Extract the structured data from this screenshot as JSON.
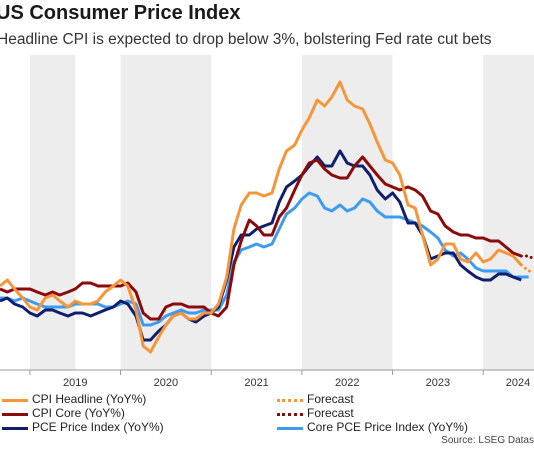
{
  "title": "US Consumer Price Index",
  "subtitle": "Headline CPI is expected to drop below 3%, bolstering Fed rate cut bets",
  "source": "Source: LSEG Datas",
  "chart_data": {
    "type": "line",
    "x_ticks": [
      "2019",
      "2020",
      "2021",
      "2022",
      "2023",
      "2024"
    ],
    "recessions_shaded": true,
    "legend_position": "bottom",
    "x_range": [
      2018.67,
      2024.56
    ],
    "ylim": [
      -0.5,
      10.0
    ],
    "grid": false,
    "series": [
      {
        "name": "CPI Headline (YoY%)",
        "color": "#f5963a",
        "style": "solid",
        "points": [
          [
            2018.67,
            2.3
          ],
          [
            2018.75,
            2.5
          ],
          [
            2018.83,
            2.2
          ],
          [
            2018.92,
            1.9
          ],
          [
            2019.0,
            1.6
          ],
          [
            2019.08,
            1.5
          ],
          [
            2019.17,
            1.9
          ],
          [
            2019.25,
            2.0
          ],
          [
            2019.33,
            1.8
          ],
          [
            2019.42,
            1.6
          ],
          [
            2019.5,
            1.8
          ],
          [
            2019.58,
            1.7
          ],
          [
            2019.67,
            1.7
          ],
          [
            2019.75,
            1.8
          ],
          [
            2019.83,
            2.1
          ],
          [
            2019.92,
            2.3
          ],
          [
            2020.0,
            2.5
          ],
          [
            2020.08,
            2.3
          ],
          [
            2020.17,
            1.5
          ],
          [
            2020.25,
            0.3
          ],
          [
            2020.33,
            0.1
          ],
          [
            2020.42,
            0.6
          ],
          [
            2020.5,
            1.0
          ],
          [
            2020.58,
            1.3
          ],
          [
            2020.67,
            1.4
          ],
          [
            2020.75,
            1.2
          ],
          [
            2020.83,
            1.2
          ],
          [
            2020.92,
            1.4
          ],
          [
            2021.0,
            1.4
          ],
          [
            2021.08,
            1.7
          ],
          [
            2021.17,
            2.6
          ],
          [
            2021.25,
            4.2
          ],
          [
            2021.33,
            5.0
          ],
          [
            2021.42,
            5.4
          ],
          [
            2021.5,
            5.4
          ],
          [
            2021.58,
            5.3
          ],
          [
            2021.67,
            5.4
          ],
          [
            2021.75,
            6.2
          ],
          [
            2021.83,
            6.8
          ],
          [
            2021.92,
            7.0
          ],
          [
            2022.0,
            7.5
          ],
          [
            2022.08,
            7.9
          ],
          [
            2022.17,
            8.5
          ],
          [
            2022.25,
            8.3
          ],
          [
            2022.33,
            8.6
          ],
          [
            2022.42,
            9.1
          ],
          [
            2022.5,
            8.5
          ],
          [
            2022.58,
            8.3
          ],
          [
            2022.67,
            8.2
          ],
          [
            2022.75,
            7.7
          ],
          [
            2022.83,
            7.1
          ],
          [
            2022.92,
            6.5
          ],
          [
            2023.0,
            6.4
          ],
          [
            2023.08,
            6.0
          ],
          [
            2023.17,
            5.0
          ],
          [
            2023.25,
            4.9
          ],
          [
            2023.33,
            4.0
          ],
          [
            2023.42,
            3.0
          ],
          [
            2023.5,
            3.2
          ],
          [
            2023.58,
            3.7
          ],
          [
            2023.67,
            3.7
          ],
          [
            2023.75,
            3.2
          ],
          [
            2023.83,
            3.1
          ],
          [
            2023.92,
            3.4
          ],
          [
            2024.0,
            3.1
          ],
          [
            2024.08,
            3.2
          ],
          [
            2024.17,
            3.5
          ],
          [
            2024.25,
            3.4
          ],
          [
            2024.33,
            3.3
          ],
          [
            2024.42,
            3.0
          ]
        ]
      },
      {
        "name": "CPI Core (YoY%)",
        "color": "#8b0a0a",
        "style": "solid",
        "points": [
          [
            2018.67,
            2.2
          ],
          [
            2018.75,
            2.1
          ],
          [
            2018.83,
            2.2
          ],
          [
            2018.92,
            2.2
          ],
          [
            2019.0,
            2.2
          ],
          [
            2019.08,
            2.1
          ],
          [
            2019.17,
            2.0
          ],
          [
            2019.25,
            2.1
          ],
          [
            2019.33,
            2.0
          ],
          [
            2019.42,
            2.1
          ],
          [
            2019.5,
            2.2
          ],
          [
            2019.58,
            2.4
          ],
          [
            2019.67,
            2.4
          ],
          [
            2019.75,
            2.3
          ],
          [
            2019.83,
            2.3
          ],
          [
            2019.92,
            2.3
          ],
          [
            2020.0,
            2.3
          ],
          [
            2020.08,
            2.4
          ],
          [
            2020.17,
            2.1
          ],
          [
            2020.25,
            1.4
          ],
          [
            2020.33,
            1.2
          ],
          [
            2020.42,
            1.2
          ],
          [
            2020.5,
            1.6
          ],
          [
            2020.58,
            1.7
          ],
          [
            2020.67,
            1.7
          ],
          [
            2020.75,
            1.6
          ],
          [
            2020.83,
            1.6
          ],
          [
            2020.92,
            1.6
          ],
          [
            2021.0,
            1.4
          ],
          [
            2021.08,
            1.3
          ],
          [
            2021.17,
            1.6
          ],
          [
            2021.25,
            3.0
          ],
          [
            2021.33,
            3.8
          ],
          [
            2021.42,
            4.5
          ],
          [
            2021.5,
            4.3
          ],
          [
            2021.58,
            4.0
          ],
          [
            2021.67,
            4.0
          ],
          [
            2021.75,
            4.6
          ],
          [
            2021.83,
            4.9
          ],
          [
            2021.92,
            5.5
          ],
          [
            2022.0,
            6.0
          ],
          [
            2022.08,
            6.4
          ],
          [
            2022.17,
            6.5
          ],
          [
            2022.25,
            6.2
          ],
          [
            2022.33,
            6.0
          ],
          [
            2022.42,
            5.9
          ],
          [
            2022.5,
            5.9
          ],
          [
            2022.58,
            6.3
          ],
          [
            2022.67,
            6.6
          ],
          [
            2022.75,
            6.3
          ],
          [
            2022.83,
            6.0
          ],
          [
            2022.92,
            5.7
          ],
          [
            2023.0,
            5.6
          ],
          [
            2023.08,
            5.5
          ],
          [
            2023.17,
            5.6
          ],
          [
            2023.25,
            5.5
          ],
          [
            2023.33,
            5.3
          ],
          [
            2023.42,
            4.8
          ],
          [
            2023.5,
            4.7
          ],
          [
            2023.58,
            4.3
          ],
          [
            2023.67,
            4.1
          ],
          [
            2023.75,
            4.0
          ],
          [
            2023.83,
            4.0
          ],
          [
            2023.92,
            3.9
          ],
          [
            2024.0,
            3.9
          ],
          [
            2024.08,
            3.8
          ],
          [
            2024.17,
            3.8
          ],
          [
            2024.25,
            3.6
          ],
          [
            2024.33,
            3.4
          ],
          [
            2024.42,
            3.3
          ]
        ]
      },
      {
        "name": "PCE Price Index (YoY%)",
        "color": "#0f1f6e",
        "style": "solid",
        "points": [
          [
            2018.67,
            1.8
          ],
          [
            2018.75,
            1.9
          ],
          [
            2018.83,
            1.7
          ],
          [
            2018.92,
            1.6
          ],
          [
            2019.0,
            1.4
          ],
          [
            2019.08,
            1.3
          ],
          [
            2019.17,
            1.5
          ],
          [
            2019.25,
            1.5
          ],
          [
            2019.33,
            1.4
          ],
          [
            2019.42,
            1.3
          ],
          [
            2019.5,
            1.4
          ],
          [
            2019.58,
            1.4
          ],
          [
            2019.67,
            1.3
          ],
          [
            2019.75,
            1.4
          ],
          [
            2019.83,
            1.5
          ],
          [
            2019.92,
            1.6
          ],
          [
            2020.0,
            1.8
          ],
          [
            2020.08,
            1.7
          ],
          [
            2020.17,
            1.3
          ],
          [
            2020.25,
            0.5
          ],
          [
            2020.33,
            0.5
          ],
          [
            2020.42,
            0.8
          ],
          [
            2020.5,
            1.0
          ],
          [
            2020.58,
            1.3
          ],
          [
            2020.67,
            1.4
          ],
          [
            2020.75,
            1.2
          ],
          [
            2020.83,
            1.1
          ],
          [
            2020.92,
            1.3
          ],
          [
            2021.0,
            1.4
          ],
          [
            2021.08,
            1.6
          ],
          [
            2021.17,
            2.5
          ],
          [
            2021.25,
            3.6
          ],
          [
            2021.33,
            4.0
          ],
          [
            2021.42,
            4.0
          ],
          [
            2021.5,
            4.2
          ],
          [
            2021.58,
            4.3
          ],
          [
            2021.67,
            4.4
          ],
          [
            2021.75,
            5.1
          ],
          [
            2021.83,
            5.6
          ],
          [
            2021.92,
            5.8
          ],
          [
            2022.0,
            6.0
          ],
          [
            2022.08,
            6.3
          ],
          [
            2022.17,
            6.6
          ],
          [
            2022.25,
            6.3
          ],
          [
            2022.33,
            6.3
          ],
          [
            2022.42,
            6.8
          ],
          [
            2022.5,
            6.4
          ],
          [
            2022.58,
            6.3
          ],
          [
            2022.67,
            6.3
          ],
          [
            2022.75,
            6.0
          ],
          [
            2022.83,
            5.5
          ],
          [
            2022.92,
            5.2
          ],
          [
            2023.0,
            5.4
          ],
          [
            2023.08,
            5.1
          ],
          [
            2023.17,
            4.4
          ],
          [
            2023.25,
            4.4
          ],
          [
            2023.33,
            4.0
          ],
          [
            2023.42,
            3.2
          ],
          [
            2023.5,
            3.3
          ],
          [
            2023.58,
            3.4
          ],
          [
            2023.67,
            3.4
          ],
          [
            2023.75,
            3.0
          ],
          [
            2023.83,
            2.8
          ],
          [
            2023.92,
            2.6
          ],
          [
            2024.0,
            2.5
          ],
          [
            2024.08,
            2.5
          ],
          [
            2024.17,
            2.7
          ],
          [
            2024.25,
            2.7
          ],
          [
            2024.33,
            2.6
          ],
          [
            2024.42,
            2.5
          ]
        ]
      },
      {
        "name": "Core PCE Price Index (YoY%)",
        "color": "#3d9bf0",
        "style": "solid",
        "points": [
          [
            2018.67,
            1.9
          ],
          [
            2018.75,
            1.9
          ],
          [
            2018.83,
            1.8
          ],
          [
            2018.92,
            1.9
          ],
          [
            2019.0,
            1.8
          ],
          [
            2019.08,
            1.7
          ],
          [
            2019.17,
            1.6
          ],
          [
            2019.25,
            1.6
          ],
          [
            2019.33,
            1.6
          ],
          [
            2019.42,
            1.6
          ],
          [
            2019.5,
            1.7
          ],
          [
            2019.58,
            1.7
          ],
          [
            2019.67,
            1.7
          ],
          [
            2019.75,
            1.7
          ],
          [
            2019.83,
            1.6
          ],
          [
            2019.92,
            1.6
          ],
          [
            2020.0,
            1.7
          ],
          [
            2020.08,
            1.8
          ],
          [
            2020.17,
            1.7
          ],
          [
            2020.25,
            1.0
          ],
          [
            2020.33,
            1.0
          ],
          [
            2020.42,
            1.1
          ],
          [
            2020.5,
            1.3
          ],
          [
            2020.58,
            1.4
          ],
          [
            2020.67,
            1.5
          ],
          [
            2020.75,
            1.4
          ],
          [
            2020.83,
            1.4
          ],
          [
            2020.92,
            1.5
          ],
          [
            2021.0,
            1.5
          ],
          [
            2021.08,
            1.5
          ],
          [
            2021.17,
            2.0
          ],
          [
            2021.25,
            3.1
          ],
          [
            2021.33,
            3.5
          ],
          [
            2021.42,
            3.6
          ],
          [
            2021.5,
            3.7
          ],
          [
            2021.58,
            3.6
          ],
          [
            2021.67,
            3.7
          ],
          [
            2021.75,
            4.2
          ],
          [
            2021.83,
            4.7
          ],
          [
            2021.92,
            4.9
          ],
          [
            2022.0,
            5.2
          ],
          [
            2022.08,
            5.4
          ],
          [
            2022.17,
            5.3
          ],
          [
            2022.25,
            4.9
          ],
          [
            2022.33,
            4.8
          ],
          [
            2022.42,
            5.0
          ],
          [
            2022.5,
            4.8
          ],
          [
            2022.58,
            4.9
          ],
          [
            2022.67,
            5.2
          ],
          [
            2022.75,
            5.1
          ],
          [
            2022.83,
            4.8
          ],
          [
            2022.92,
            4.6
          ],
          [
            2023.0,
            4.6
          ],
          [
            2023.08,
            4.6
          ],
          [
            2023.17,
            4.5
          ],
          [
            2023.25,
            4.4
          ],
          [
            2023.33,
            4.3
          ],
          [
            2023.42,
            4.1
          ],
          [
            2023.5,
            3.9
          ],
          [
            2023.58,
            3.5
          ],
          [
            2023.67,
            3.3
          ],
          [
            2023.75,
            3.4
          ],
          [
            2023.83,
            3.2
          ],
          [
            2023.92,
            2.9
          ],
          [
            2024.0,
            2.8
          ],
          [
            2024.08,
            2.8
          ],
          [
            2024.17,
            2.8
          ],
          [
            2024.25,
            2.8
          ],
          [
            2024.33,
            2.6
          ],
          [
            2024.42,
            2.6
          ],
          [
            2024.5,
            2.6
          ]
        ]
      },
      {
        "name": "Forecast",
        "color": "#f5963a",
        "style": "dotted",
        "points": [
          [
            2024.42,
            3.0
          ],
          [
            2024.5,
            2.8
          ],
          [
            2024.56,
            2.8
          ]
        ]
      },
      {
        "name": "Forecast",
        "color": "#8b0a0a",
        "style": "dotted",
        "points": [
          [
            2024.42,
            3.3
          ],
          [
            2024.5,
            3.3
          ],
          [
            2024.56,
            3.2
          ]
        ]
      }
    ],
    "shaded_periods": [
      [
        2019.0,
        2019.5
      ],
      [
        2020.0,
        2021.0
      ],
      [
        2022.0,
        2023.0
      ],
      [
        2024.0,
        2024.56
      ]
    ]
  }
}
